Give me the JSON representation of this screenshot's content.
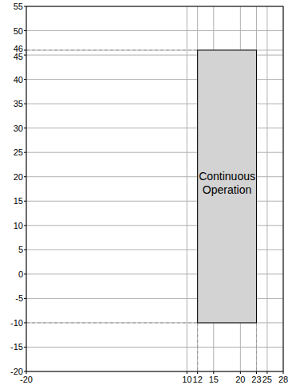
{
  "chart_data": {
    "type": "range",
    "annotation": "Continuous Operation",
    "region": {
      "x": [
        12,
        23
      ],
      "y": [
        -10,
        46
      ],
      "color": "#d3d3d3"
    },
    "xlim": [
      -20,
      28
    ],
    "xticks": [
      -20,
      10,
      12,
      15,
      20,
      23,
      25,
      28
    ],
    "ylim": [
      -20,
      55
    ],
    "yticks": [
      -20,
      -15,
      -10,
      -5,
      0,
      5,
      10,
      15,
      20,
      25,
      30,
      35,
      40,
      45,
      46,
      50,
      55
    ],
    "grid": true
  }
}
